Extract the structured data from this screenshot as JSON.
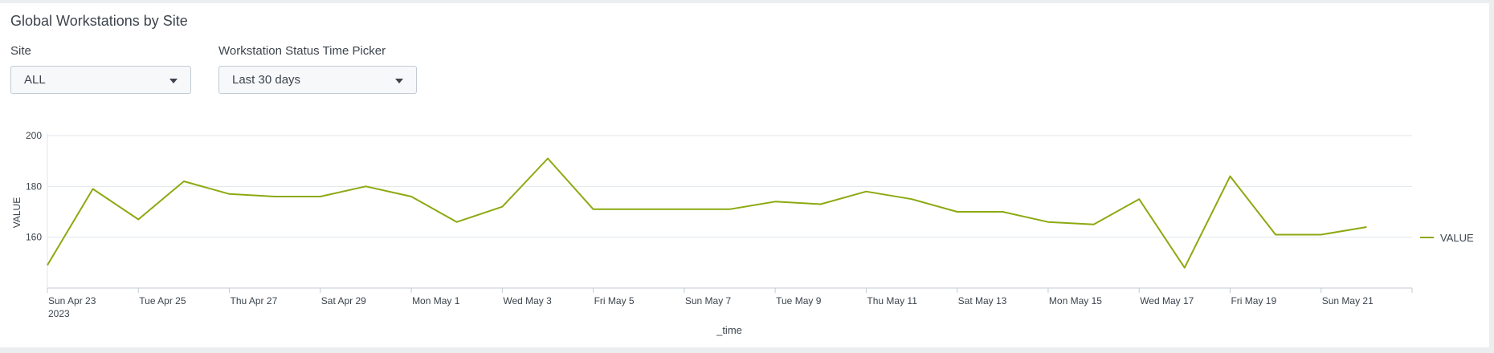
{
  "panel": {
    "title": "Global Workstations by Site"
  },
  "inputs": {
    "site": {
      "label": "Site",
      "value": "ALL",
      "icon": "caret-down-icon"
    },
    "time_picker": {
      "label": "Workstation Status Time Picker",
      "value": "Last 30 days",
      "icon": "caret-down-icon"
    }
  },
  "colors": {
    "series": "#8ca911",
    "grid": "#e1e6eb",
    "axis": "#c3cbd4",
    "text": "#3c444d"
  },
  "chart_data": {
    "type": "line",
    "xlabel": "_time",
    "ylabel": "VALUE",
    "ylim": [
      140,
      200
    ],
    "yticks": [
      160,
      180,
      200
    ],
    "grid": true,
    "legend_position": "right",
    "x": [
      "2023-04-23",
      "2023-04-24",
      "2023-04-25",
      "2023-04-26",
      "2023-04-27",
      "2023-04-28",
      "2023-04-29",
      "2023-04-30",
      "2023-05-01",
      "2023-05-02",
      "2023-05-03",
      "2023-05-04",
      "2023-05-05",
      "2023-05-06",
      "2023-05-07",
      "2023-05-08",
      "2023-05-09",
      "2023-05-10",
      "2023-05-11",
      "2023-05-12",
      "2023-05-13",
      "2023-05-14",
      "2023-05-15",
      "2023-05-16",
      "2023-05-17",
      "2023-05-18",
      "2023-05-19",
      "2023-05-20",
      "2023-05-21",
      "2023-05-22"
    ],
    "xtick_labels": [
      {
        "date": "2023-04-23",
        "label": "Sun Apr 23",
        "sublabel": "2023"
      },
      {
        "date": "2023-04-25",
        "label": "Tue Apr 25"
      },
      {
        "date": "2023-04-27",
        "label": "Thu Apr 27"
      },
      {
        "date": "2023-04-29",
        "label": "Sat Apr 29"
      },
      {
        "date": "2023-05-01",
        "label": "Mon May 1"
      },
      {
        "date": "2023-05-03",
        "label": "Wed May 3"
      },
      {
        "date": "2023-05-05",
        "label": "Fri May 5"
      },
      {
        "date": "2023-05-07",
        "label": "Sun May 7"
      },
      {
        "date": "2023-05-09",
        "label": "Tue May 9"
      },
      {
        "date": "2023-05-11",
        "label": "Thu May 11"
      },
      {
        "date": "2023-05-13",
        "label": "Sat May 13"
      },
      {
        "date": "2023-05-15",
        "label": "Mon May 15"
      },
      {
        "date": "2023-05-17",
        "label": "Wed May 17"
      },
      {
        "date": "2023-05-19",
        "label": "Fri May 19"
      },
      {
        "date": "2023-05-21",
        "label": "Sun May 21"
      }
    ],
    "series": [
      {
        "name": "VALUE",
        "values": [
          149,
          179,
          167,
          182,
          177,
          176,
          176,
          180,
          176,
          166,
          172,
          191,
          171,
          171,
          171,
          171,
          174,
          173,
          178,
          175,
          170,
          170,
          166,
          165,
          175,
          148,
          184,
          161,
          161,
          164
        ]
      }
    ]
  }
}
